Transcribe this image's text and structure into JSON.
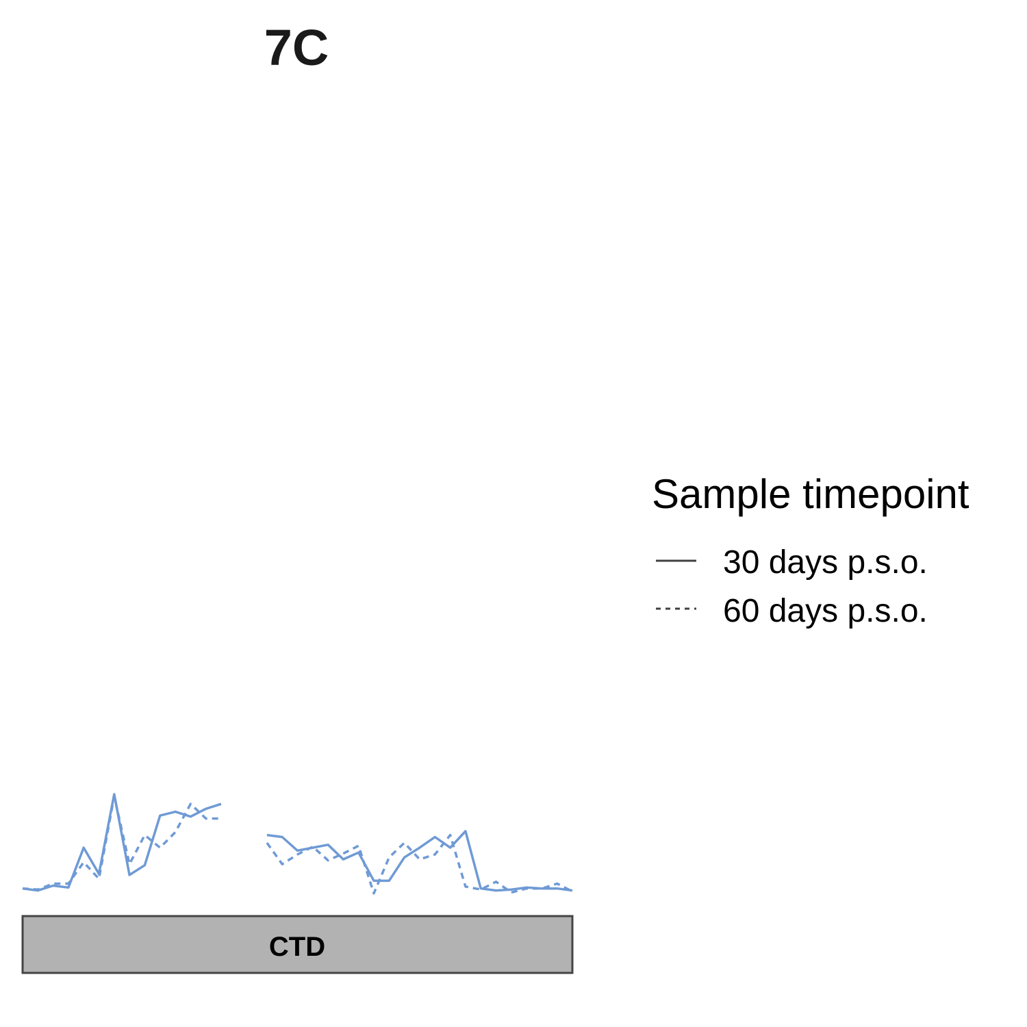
{
  "chart_data": {
    "type": "line",
    "title": "7C",
    "xlabel": "",
    "ylabel": "",
    "x": [
      1,
      2,
      3,
      4,
      5,
      6,
      7,
      8,
      9,
      10,
      11,
      12,
      13,
      14,
      15,
      16,
      17,
      18,
      19,
      20,
      21,
      22,
      23,
      24,
      25,
      26,
      27,
      28,
      29,
      30,
      31,
      32,
      33,
      34,
      35,
      36,
      37
    ],
    "ylim": [
      0,
      1
    ],
    "grid": false,
    "series": [
      {
        "name": "30 days p.s.o.",
        "style": "solid",
        "values": [
          0.03,
          0.01,
          0.06,
          0.04,
          0.45,
          0.18,
          1.0,
          0.17,
          0.27,
          0.78,
          0.82,
          0.77,
          0.85,
          0.9,
          null,
          null,
          0.58,
          0.56,
          0.42,
          0.45,
          0.48,
          0.33,
          0.4,
          0.11,
          0.11,
          0.35,
          0.45,
          0.56,
          0.45,
          0.62,
          0.03,
          0.01,
          0.02,
          0.04,
          0.03,
          0.03,
          0.01
        ],
        "color": "#6f9ad5"
      },
      {
        "name": "60 days p.s.o.",
        "style": "dashed",
        "values": [
          0.03,
          0.02,
          0.08,
          0.08,
          0.3,
          0.13,
          0.98,
          0.28,
          0.58,
          0.45,
          0.61,
          0.9,
          0.75,
          0.75,
          null,
          null,
          0.5,
          0.28,
          0.38,
          0.46,
          0.32,
          0.39,
          0.47,
          -0.02,
          0.35,
          0.5,
          0.33,
          0.38,
          0.58,
          0.05,
          0.02,
          0.1,
          -0.01,
          0.03,
          0.03,
          0.08,
          0.0
        ],
        "color": "#6f9ad5"
      }
    ],
    "legend": {
      "title": "Sample timepoint",
      "position": "right"
    },
    "domain_track": {
      "label": "CTD",
      "fill": "#b2b2b2",
      "stroke": "#444444"
    }
  }
}
